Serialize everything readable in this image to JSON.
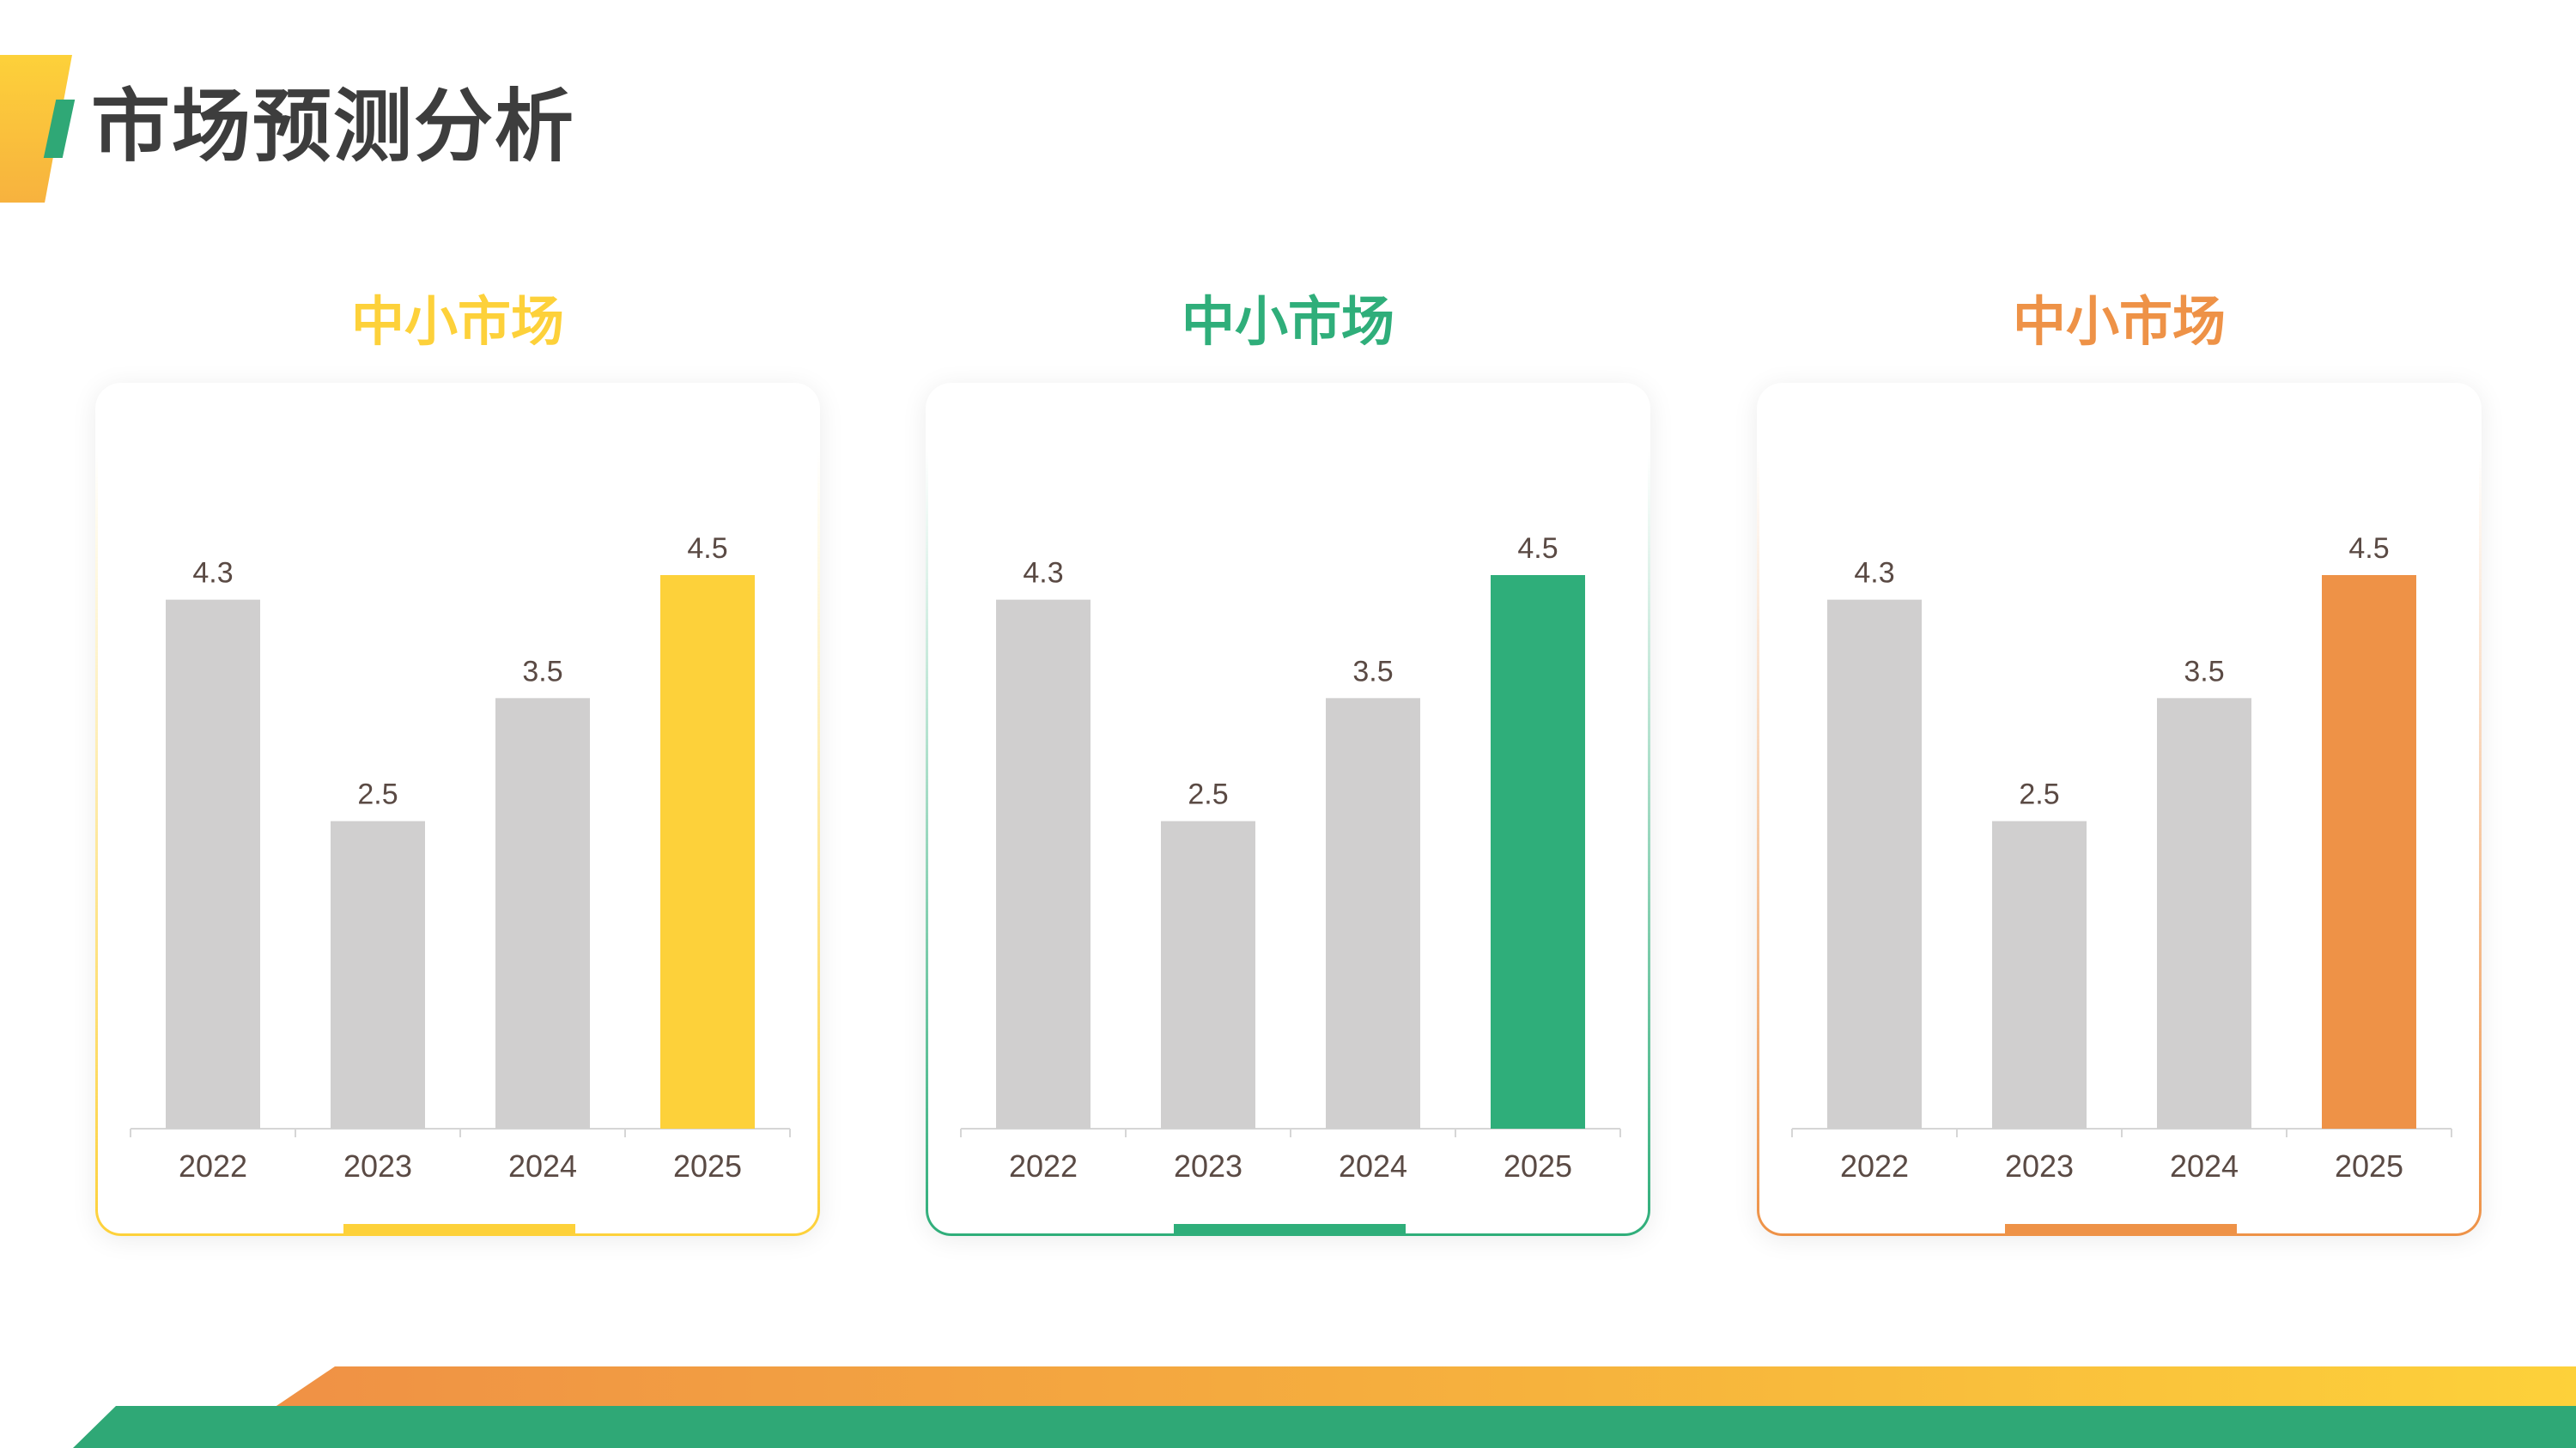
{
  "page": {
    "title": "市场预测分析"
  },
  "chart_data": [
    {
      "type": "bar",
      "title": "中小市场",
      "accent": "#fdd13a",
      "base_color": "#d0cfcf",
      "categories": [
        "2022",
        "2023",
        "2024",
        "2025"
      ],
      "values": [
        4.3,
        2.5,
        3.5,
        4.5
      ],
      "highlight_index": 3,
      "data_labels": [
        "4.3",
        "2.5",
        "3.5",
        "4.5"
      ],
      "ylim": [
        0,
        4.5
      ],
      "grid": false
    },
    {
      "type": "bar",
      "title": "中小市场",
      "accent": "#2fae7a",
      "base_color": "#d0cfcf",
      "categories": [
        "2022",
        "2023",
        "2024",
        "2025"
      ],
      "values": [
        4.3,
        2.5,
        3.5,
        4.5
      ],
      "highlight_index": 3,
      "data_labels": [
        "4.3",
        "2.5",
        "3.5",
        "4.5"
      ],
      "ylim": [
        0,
        4.5
      ],
      "grid": false
    },
    {
      "type": "bar",
      "title": "中小市场",
      "accent": "#ee9247",
      "base_color": "#d0cfcf",
      "categories": [
        "2022",
        "2023",
        "2024",
        "2025"
      ],
      "values": [
        4.3,
        2.5,
        3.5,
        4.5
      ],
      "highlight_index": 3,
      "data_labels": [
        "4.3",
        "2.5",
        "3.5",
        "4.5"
      ],
      "ylim": [
        0,
        4.5
      ],
      "grid": false
    }
  ]
}
